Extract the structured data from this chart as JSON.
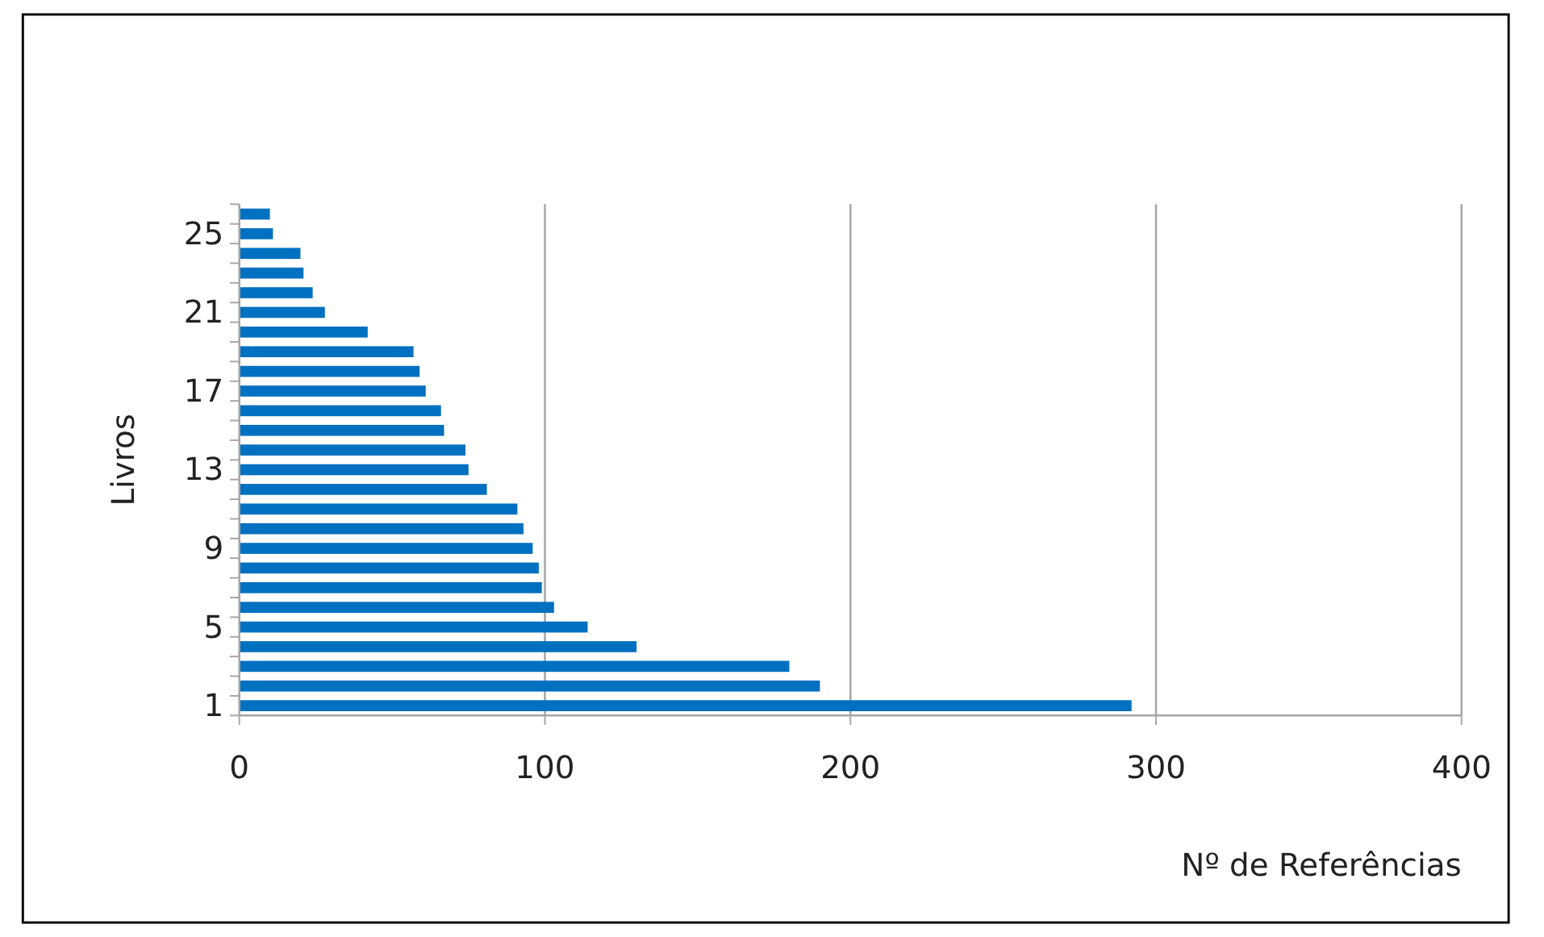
{
  "chart_data": {
    "type": "bar",
    "orientation": "horizontal",
    "xlabel": "Nº de Referências",
    "ylabel": "Livros",
    "categories": [
      null,
      "25",
      null,
      null,
      null,
      "21",
      null,
      null,
      null,
      "17",
      null,
      null,
      null,
      "13",
      null,
      null,
      null,
      "9",
      null,
      null,
      null,
      "5",
      null,
      null,
      null,
      "1"
    ],
    "values": [
      10,
      11,
      20,
      21,
      24,
      28,
      42,
      57,
      59,
      61,
      66,
      67,
      74,
      75,
      81,
      91,
      93,
      96,
      98,
      99,
      103,
      114,
      130,
      180,
      190,
      292
    ],
    "color": "#0070c0",
    "xlim": [
      0,
      400
    ],
    "xticks": [
      0,
      100,
      200,
      300,
      400
    ],
    "grid": "x"
  }
}
